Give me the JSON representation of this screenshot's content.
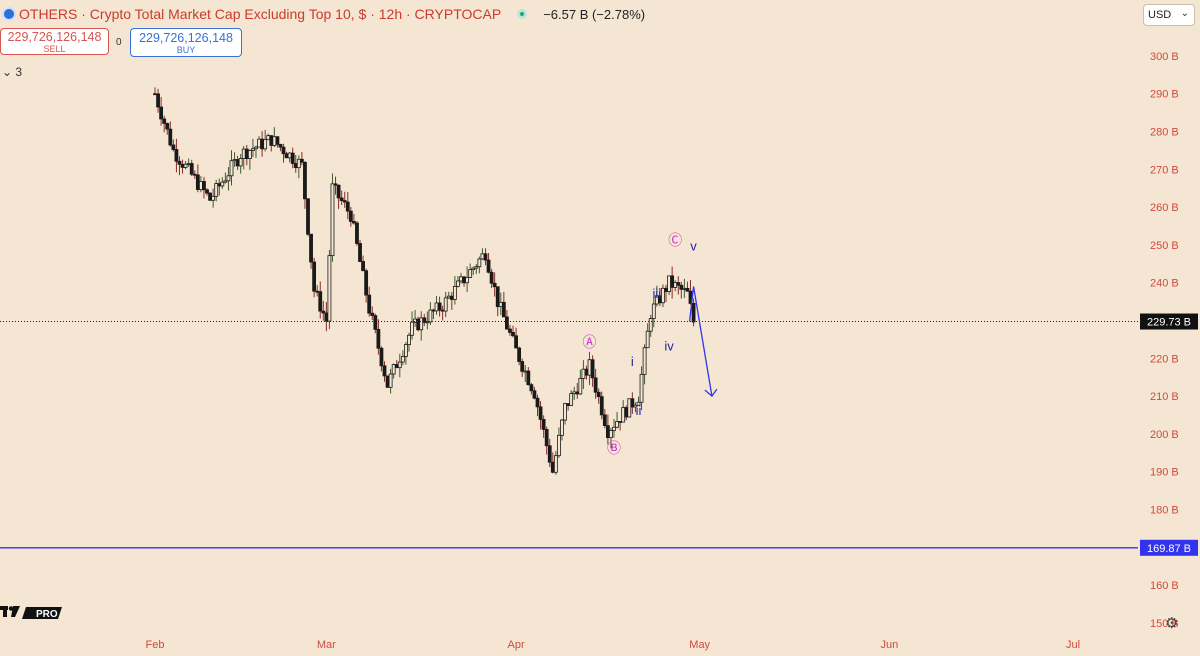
{
  "header": {
    "symbol": "OTHERS",
    "description": "Crypto Total Market Cap Excluding Top 10, $ · 12h · CRYPTOCAP",
    "change": "−6.57 B (−2.78%)",
    "sell_price": "229,726,126,148",
    "sell_label": "SELL",
    "spread": "0",
    "buy_price": "229,726,126,148",
    "buy_label": "BUY",
    "collapse_count": "3"
  },
  "currency": "USD",
  "logo": "PRO",
  "colors": {
    "background": "#f5e6d3",
    "candle": "#1a1a1a",
    "wave_labels": "#2222aa",
    "abc_labels": "#cc33cc",
    "support_line": "#3333ee",
    "price_axis_text": "#d04a3d"
  },
  "chart_data": {
    "type": "candlestick",
    "title": "OTHERS · Crypto Total Market Cap Excluding Top 10, $ · 12h · CRYPTOCAP",
    "y_unit": "B",
    "ylim": [
      145,
      305
    ],
    "y_ticks": [
      "300 B",
      "290 B",
      "280 B",
      "270 B",
      "260 B",
      "250 B",
      "240 B",
      "230 B",
      "220 B",
      "210 B",
      "200 B",
      "190 B",
      "180 B",
      "170 B",
      "160 B",
      "150 B"
    ],
    "x_ticks": [
      "Feb",
      "Mar",
      "Apr",
      "May",
      "Jun",
      "Jul"
    ],
    "current_price_label": "229.73 B",
    "current_price": 229.73,
    "support_level_label": "169.87 B",
    "support_level": 169.87,
    "approx_close_path": [
      {
        "date": "Feb 1",
        "value": 290
      },
      {
        "date": "Feb 4",
        "value": 275
      },
      {
        "date": "Feb 10",
        "value": 262
      },
      {
        "date": "Feb 15",
        "value": 274
      },
      {
        "date": "Feb 20",
        "value": 278
      },
      {
        "date": "Feb 25",
        "value": 271
      },
      {
        "date": "Feb 27",
        "value": 238
      },
      {
        "date": "Mar 1",
        "value": 230
      },
      {
        "date": "Mar 2",
        "value": 265
      },
      {
        "date": "Mar 5",
        "value": 258
      },
      {
        "date": "Mar 8",
        "value": 233
      },
      {
        "date": "Mar 11",
        "value": 213
      },
      {
        "date": "Mar 15",
        "value": 228
      },
      {
        "date": "Mar 20",
        "value": 234
      },
      {
        "date": "Mar 27",
        "value": 248
      },
      {
        "date": "Mar 29",
        "value": 235
      },
      {
        "date": "Apr 1",
        "value": 222
      },
      {
        "date": "Apr 4",
        "value": 211
      },
      {
        "date": "Apr 7",
        "value": 190
      },
      {
        "date": "Apr 9",
        "value": 207
      },
      {
        "date": "Apr 13",
        "value": 218
      },
      {
        "date": "Apr 16",
        "value": 201
      },
      {
        "date": "Apr 21",
        "value": 210
      },
      {
        "date": "Apr 23",
        "value": 232
      },
      {
        "date": "Apr 26",
        "value": 240
      },
      {
        "date": "Apr 29",
        "value": 237
      },
      {
        "date": "Apr 30",
        "value": 229.73
      }
    ],
    "annotations": [
      {
        "label": "Ⓐ",
        "date": "Apr 13",
        "value": 223,
        "color": "abc"
      },
      {
        "label": "Ⓑ",
        "date": "Apr 17",
        "value": 195,
        "color": "abc"
      },
      {
        "label": "Ⓒ",
        "date": "Apr 27",
        "value": 250,
        "color": "abc"
      },
      {
        "label": "i",
        "date": "Apr 20",
        "value": 218,
        "color": "wave"
      },
      {
        "label": "ii",
        "date": "Apr 21",
        "value": 205,
        "color": "wave"
      },
      {
        "label": "iii",
        "date": "Apr 24",
        "value": 236,
        "color": "wave"
      },
      {
        "label": "iv",
        "date": "Apr 26",
        "value": 222,
        "color": "wave"
      },
      {
        "label": "v",
        "date": "Apr 30",
        "value": 248.5,
        "color": "wave"
      }
    ],
    "projection": [
      {
        "date": "Apr 30",
        "value": 239
      },
      {
        "date": "May 3",
        "value": 210
      }
    ]
  }
}
